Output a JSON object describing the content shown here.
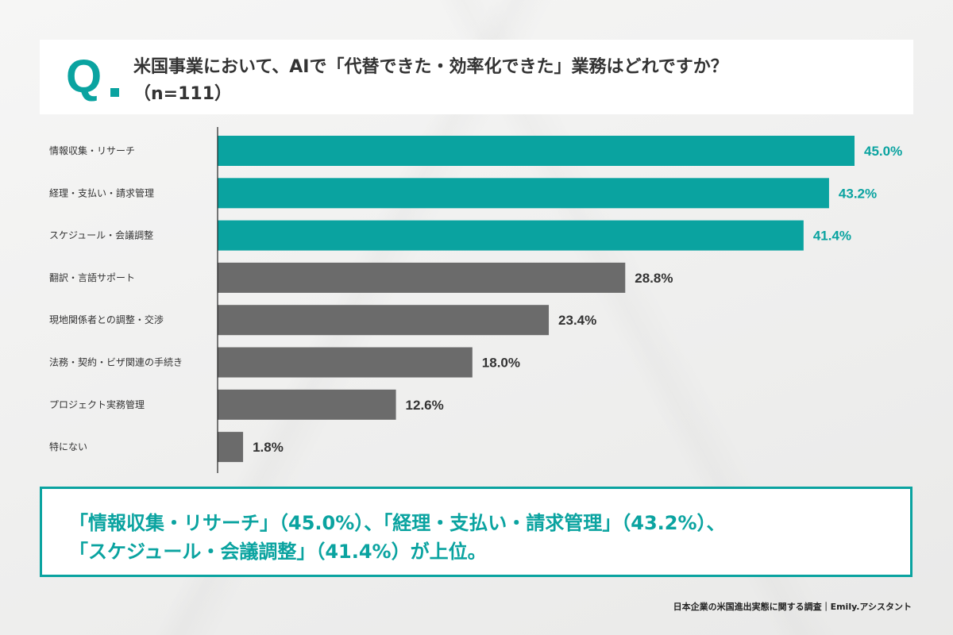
{
  "header": {
    "q_mark": "Q",
    "question_line1": "米国事業において、AIで「代替できた・効率化できた」業務はどれですか？",
    "question_line2": "（n=111）"
  },
  "colors": {
    "accent": "#0aa3a0",
    "bar_gray": "#6b6b6b",
    "value_dark": "#333333"
  },
  "chart_data": {
    "type": "bar",
    "orientation": "horizontal",
    "categories": [
      "情報収集・リサーチ",
      "経理・支払い・請求管理",
      "スケジュール・会議調整",
      "翻訳・言語サポート",
      "現地関係者との調整・交渉",
      "法務・契約・ビザ関連の手続き",
      "プロジェクト実務管理",
      "特にない"
    ],
    "values": [
      45.0,
      43.2,
      41.4,
      28.8,
      23.4,
      18.0,
      12.6,
      1.8
    ],
    "value_labels": [
      "45.0%",
      "43.2%",
      "41.4%",
      "28.8%",
      "23.4%",
      "18.0%",
      "12.6%",
      "1.8%"
    ],
    "highlighted": [
      true,
      true,
      true,
      false,
      false,
      false,
      false,
      false
    ],
    "xlim": [
      0,
      45
    ],
    "grid": false
  },
  "summary": {
    "line1": "「情報収集・リサーチ」（45.0%）、「経理・支払い・請求管理」（43.2%）、",
    "line2": "「スケジュール・会議調整」（41.4%）が上位。"
  },
  "footer": {
    "source": "日本企業の米国進出実態に関する調査｜Emily.アシスタント"
  }
}
